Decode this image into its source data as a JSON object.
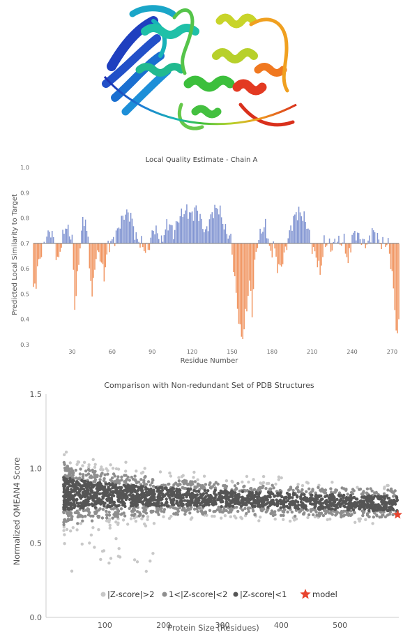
{
  "chart_data": [
    {
      "type": "bar",
      "title": "Local Quality Estimate - Chain A",
      "xlabel": "Residue Number",
      "ylabel": "Predicted Local Similarity to Target",
      "baseline": 0.7,
      "ylim": [
        0.3,
        1.0
      ],
      "xlim": [
        1,
        275
      ],
      "yticks": [
        0.3,
        0.4,
        0.5,
        0.6,
        0.7,
        0.8,
        0.9,
        1.0
      ],
      "xticks": [
        30,
        60,
        90,
        120,
        150,
        180,
        210,
        240,
        270
      ],
      "colors": {
        "above": "#7b8fd0",
        "below": "#f0905a",
        "baseline": "#777777"
      },
      "profile_keypoints": {
        "residue": [
          1,
          3,
          5,
          8,
          10,
          14,
          17,
          19,
          22,
          25,
          27,
          30,
          32,
          35,
          37,
          40,
          42,
          45,
          47,
          50,
          54,
          57,
          62,
          66,
          70,
          74,
          78,
          82,
          85,
          88,
          91,
          94,
          97,
          100,
          103,
          106,
          110,
          113,
          116,
          120,
          123,
          126,
          130,
          133,
          136,
          140,
          145,
          149,
          152,
          156,
          158,
          161,
          163,
          165,
          167,
          169,
          172,
          175,
          177,
          179,
          181,
          184,
          186,
          189,
          192,
          195,
          198,
          201,
          204,
          207,
          210,
          213,
          216,
          219,
          222,
          225,
          228,
          231,
          234,
          237,
          240,
          243,
          246,
          249,
          252,
          255,
          258,
          261,
          264,
          267,
          270,
          272,
          274,
          275
        ],
        "score": [
          0.52,
          0.55,
          0.63,
          0.68,
          0.72,
          0.75,
          0.7,
          0.62,
          0.7,
          0.77,
          0.75,
          0.72,
          0.45,
          0.62,
          0.76,
          0.8,
          0.7,
          0.48,
          0.62,
          0.67,
          0.57,
          0.69,
          0.72,
          0.78,
          0.82,
          0.81,
          0.72,
          0.7,
          0.67,
          0.69,
          0.76,
          0.74,
          0.7,
          0.76,
          0.78,
          0.74,
          0.8,
          0.82,
          0.83,
          0.81,
          0.84,
          0.8,
          0.74,
          0.79,
          0.83,
          0.84,
          0.75,
          0.72,
          0.55,
          0.35,
          0.33,
          0.45,
          0.55,
          0.43,
          0.62,
          0.7,
          0.75,
          0.77,
          0.72,
          0.65,
          0.7,
          0.61,
          0.6,
          0.65,
          0.72,
          0.78,
          0.82,
          0.82,
          0.8,
          0.76,
          0.68,
          0.65,
          0.58,
          0.7,
          0.7,
          0.68,
          0.72,
          0.7,
          0.71,
          0.62,
          0.73,
          0.74,
          0.72,
          0.7,
          0.7,
          0.75,
          0.73,
          0.7,
          0.7,
          0.7,
          0.58,
          0.44,
          0.32,
          0.4
        ]
      }
    },
    {
      "type": "scatter",
      "title": "Comparison with Non-redundant Set of PDB Structures",
      "xlabel": "Protein Size (Residues)",
      "ylabel": "Normalized QMEAN4 Score",
      "xlim": [
        0,
        600
      ],
      "ylim": [
        0.0,
        1.5
      ],
      "xticks": [
        100,
        200,
        300,
        400,
        500
      ],
      "yticks": [
        0.0,
        0.5,
        1.0,
        1.5
      ],
      "ytick_labels": [
        "0.0",
        "0.5",
        "1.0",
        "1.5"
      ],
      "series": [
        {
          "name": "|Z-score|>2",
          "color": "#c8c8c8"
        },
        {
          "name": "1<|Z-score|<2",
          "color": "#8e8e8e"
        },
        {
          "name": "|Z-score|<1",
          "color": "#555555"
        },
        {
          "name": "model",
          "color": "#e8432e",
          "marker": "star",
          "points": [
            [
              598,
              0.69
            ]
          ]
        }
      ],
      "legend_position": "bottom",
      "grid": false
    }
  ]
}
